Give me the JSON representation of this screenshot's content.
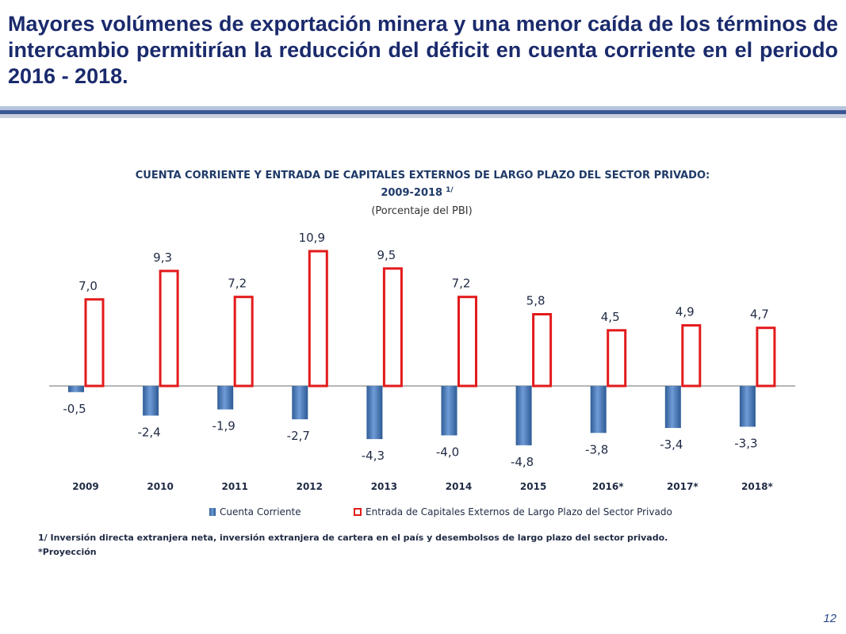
{
  "slide": {
    "title": "Mayores volúmenes de exportación minera y una menor caída de los términos de intercambio permitirían la reducción del déficit en cuenta corriente en el periodo 2016 - 2018.",
    "footnote1": "1/ Inversión directa extranjera neta, inversión extranjera de cartera en el país  y desembolsos de largo plazo del sector privado.",
    "footnote2": "*Proyección",
    "page_number": "12"
  },
  "chart_data": {
    "type": "bar",
    "title": "CUENTA CORRIENTE Y ENTRADA DE CAPITALES EXTERNOS DE LARGO PLAZO DEL SECTOR PRIVADO:",
    "title_line2": "2009-2018",
    "title_superscript": "1/",
    "subtitle": "(Porcentaje del PBI)",
    "categories": [
      "2009",
      "2010",
      "2011",
      "2012",
      "2013",
      "2014",
      "2015",
      "2016*",
      "2017*",
      "2018*"
    ],
    "series": [
      {
        "name": "Cuenta Corriente",
        "values": [
          -0.5,
          -2.4,
          -1.9,
          -2.7,
          -4.3,
          -4.0,
          -4.8,
          -3.8,
          -3.4,
          -3.3
        ],
        "labels": [
          "-0,5",
          "-2,4",
          "-1,9",
          "-2,7",
          "-4,3",
          "-4,0",
          "-4,8",
          "-3,8",
          "-3,4",
          "-3,3"
        ],
        "color": "#4f81bd"
      },
      {
        "name": "Entrada de Capitales Externos de Largo Plazo del Sector Privado",
        "values": [
          7.0,
          9.3,
          7.2,
          10.9,
          9.5,
          7.2,
          5.8,
          4.5,
          4.9,
          4.7
        ],
        "labels": [
          "7,0",
          "9,3",
          "7,2",
          "10,9",
          "9,5",
          "7,2",
          "5,8",
          "4,5",
          "4,9",
          "4,7"
        ],
        "color": "#e31a1c"
      }
    ],
    "legend_position": "bottom",
    "grid": false
  }
}
